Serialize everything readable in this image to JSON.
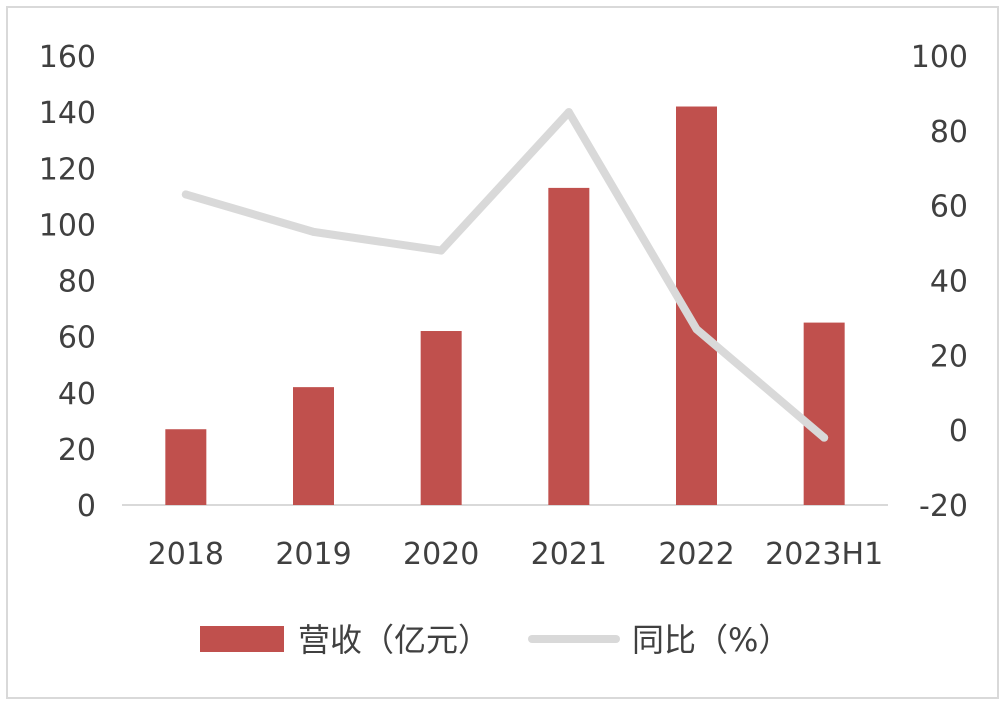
{
  "chart_data": {
    "type": "bar",
    "categories": [
      "2018",
      "2019",
      "2020",
      "2021",
      "2022",
      "2023H1"
    ],
    "series": [
      {
        "name": "营收（亿元）",
        "type": "bar",
        "axis": "left",
        "color": "#c0504d",
        "values": [
          27,
          42,
          62,
          113,
          142,
          65
        ]
      },
      {
        "name": "同比（%）",
        "type": "line",
        "axis": "right",
        "color": "#d9d9d9",
        "values": [
          63,
          53,
          48,
          85,
          27,
          -2
        ]
      }
    ],
    "y_left": {
      "min": 0,
      "max": 160,
      "ticks": [
        0,
        20,
        40,
        60,
        80,
        100,
        120,
        140,
        160
      ]
    },
    "y_right": {
      "min": -20,
      "max": 100,
      "ticks": [
        -20,
        0,
        20,
        40,
        60,
        80,
        100
      ]
    },
    "legend": "bottom",
    "grid": false
  }
}
